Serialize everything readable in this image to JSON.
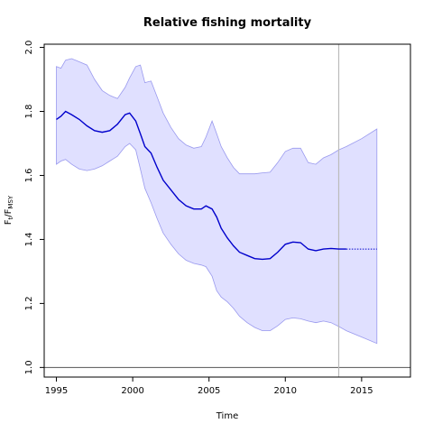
{
  "chart_data": {
    "type": "area",
    "title": "Relative fishing mortality",
    "xlabel": "Time",
    "ylabel": {
      "base": "F",
      "sub1": "t",
      "sep": "/F",
      "sub2": "MSY"
    },
    "xlim": [
      1994.2,
      2018.2
    ],
    "ylim": [
      0.97,
      2.01
    ],
    "xticks": [
      1995,
      2000,
      2005,
      2010,
      2015
    ],
    "yticks": [
      1.0,
      1.2,
      1.4,
      1.6,
      1.8,
      2.0
    ],
    "xtick_labels": [
      "1995",
      "2000",
      "2005",
      "2010",
      "2015"
    ],
    "ytick_labels": [
      "1.0",
      "1.2",
      "1.4",
      "1.6",
      "1.8",
      "2.0"
    ],
    "reference_line": 1.0,
    "last_data_year": 2013.5,
    "colors": {
      "line": "#0000cc",
      "band_fill": "#e0e0ff",
      "band_edge": "#9999ee",
      "reference": "#555555",
      "vline": "#bbbbbb"
    },
    "series": [
      {
        "role": "estimate",
        "x": [
          1995.0,
          1995.3,
          1995.6,
          1996.0,
          1996.5,
          1997.0,
          1997.5,
          1998.0,
          1998.5,
          1999.0,
          1999.5,
          1999.8,
          2000.2,
          2000.5,
          2000.8,
          2001.2,
          2001.6,
          2002.0,
          2002.5,
          2003.0,
          2003.5,
          2004.0,
          2004.5,
          2004.8,
          2005.2,
          2005.5,
          2005.8,
          2006.2,
          2006.6,
          2007.0,
          2007.5,
          2008.0,
          2008.5,
          2009.0,
          2009.5,
          2010.0,
          2010.5,
          2011.0,
          2011.5,
          2012.0,
          2012.5,
          2013.0,
          2013.5,
          2014.0
        ],
        "y": [
          1.775,
          1.785,
          1.8,
          1.79,
          1.775,
          1.755,
          1.74,
          1.735,
          1.74,
          1.76,
          1.79,
          1.795,
          1.77,
          1.73,
          1.69,
          1.67,
          1.625,
          1.585,
          1.555,
          1.525,
          1.505,
          1.495,
          1.495,
          1.505,
          1.495,
          1.47,
          1.435,
          1.405,
          1.38,
          1.36,
          1.35,
          1.34,
          1.338,
          1.34,
          1.36,
          1.385,
          1.392,
          1.39,
          1.37,
          1.365,
          1.37,
          1.372,
          1.37,
          1.37
        ]
      },
      {
        "role": "projection",
        "x": [
          2014.0,
          2015.0,
          2016.0
        ],
        "y": [
          1.37,
          1.37,
          1.37
        ]
      }
    ],
    "band": {
      "x": [
        1995.0,
        1995.3,
        1995.6,
        1996.0,
        1996.5,
        1997.0,
        1997.5,
        1998.0,
        1998.5,
        1999.0,
        1999.5,
        1999.8,
        2000.2,
        2000.5,
        2000.8,
        2001.2,
        2001.6,
        2002.0,
        2002.5,
        2003.0,
        2003.5,
        2004.0,
        2004.5,
        2004.8,
        2005.2,
        2005.5,
        2005.8,
        2006.2,
        2006.6,
        2007.0,
        2007.5,
        2008.0,
        2008.5,
        2009.0,
        2009.5,
        2010.0,
        2010.5,
        2011.0,
        2011.5,
        2012.0,
        2012.5,
        2013.0,
        2013.5,
        2014.0,
        2015.0,
        2016.0
      ],
      "upper": [
        1.94,
        1.935,
        1.96,
        1.965,
        1.955,
        1.945,
        1.9,
        1.865,
        1.85,
        1.84,
        1.875,
        1.905,
        1.94,
        1.945,
        1.89,
        1.895,
        1.845,
        1.795,
        1.75,
        1.715,
        1.695,
        1.685,
        1.69,
        1.72,
        1.77,
        1.73,
        1.69,
        1.655,
        1.625,
        1.605,
        1.605,
        1.605,
        1.608,
        1.61,
        1.64,
        1.675,
        1.685,
        1.685,
        1.64,
        1.635,
        1.655,
        1.665,
        1.68,
        1.69,
        1.715,
        1.745
      ],
      "lower": [
        1.635,
        1.645,
        1.65,
        1.635,
        1.62,
        1.615,
        1.62,
        1.63,
        1.645,
        1.66,
        1.69,
        1.7,
        1.68,
        1.62,
        1.56,
        1.515,
        1.465,
        1.42,
        1.385,
        1.355,
        1.335,
        1.325,
        1.32,
        1.315,
        1.285,
        1.24,
        1.22,
        1.205,
        1.185,
        1.16,
        1.14,
        1.125,
        1.115,
        1.115,
        1.13,
        1.15,
        1.155,
        1.152,
        1.145,
        1.14,
        1.145,
        1.14,
        1.128,
        1.115,
        1.095,
        1.075
      ]
    }
  }
}
